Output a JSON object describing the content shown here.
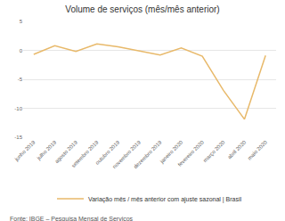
{
  "chart_data": {
    "type": "line",
    "title": "Volume de serviços (mês/mês anterior)",
    "categories": [
      "junho 2019",
      "julho 2019",
      "agosto 2019",
      "setembro 2019",
      "outubro 2019",
      "novembro 2019",
      "dezembro 2019",
      "janeiro 2020",
      "fevereiro 2020",
      "março 2020",
      "abril 2020",
      "maio 2020"
    ],
    "series": [
      {
        "name": "Variação mês / mês anterior com ajuste sazonal | Brasil",
        "color": "#e8b96a",
        "values": [
          -0.7,
          0.8,
          -0.2,
          1.1,
          0.6,
          -0.1,
          -0.8,
          0.4,
          -1.0,
          -6.9,
          -11.9,
          -0.9
        ]
      }
    ],
    "ylim": [
      -15,
      5
    ],
    "yticks": [
      -15,
      -10,
      -5,
      0,
      5
    ],
    "grid": true,
    "legend": "bottom",
    "annotations": [
      "Fonte: IBGE – Pesquisa Mensal de Serviços"
    ]
  }
}
